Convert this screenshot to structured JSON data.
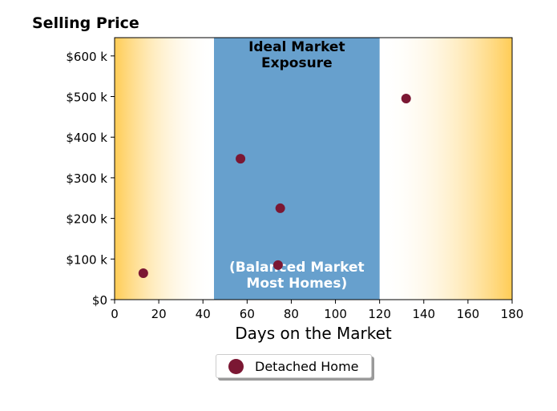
{
  "chart_data": {
    "type": "scatter",
    "title": "Selling Price",
    "xlabel": "Days on the Market",
    "ylabel": "",
    "xlim": [
      0,
      180
    ],
    "ylim": [
      0,
      645000
    ],
    "x_ticks": [
      0,
      20,
      40,
      60,
      80,
      100,
      120,
      140,
      160,
      180
    ],
    "x_tick_labels": [
      "0",
      "20",
      "40",
      "60",
      "80",
      "100",
      "120",
      "140",
      "160",
      "180"
    ],
    "y_ticks": [
      0,
      100000,
      200000,
      300000,
      400000,
      500000,
      600000
    ],
    "y_tick_labels": [
      "$0",
      "$100 k",
      "$200 k",
      "$300 k",
      "$400 k",
      "$500 k",
      "$600 k"
    ],
    "grid": false,
    "legend_position": "bottom-center-outside",
    "series": [
      {
        "name": "Detached Home",
        "color": "#7b1733",
        "points": [
          {
            "x": 13,
            "y": 65000
          },
          {
            "x": 57,
            "y": 347000
          },
          {
            "x": 75,
            "y": 225000
          },
          {
            "x": 74,
            "y": 85000
          },
          {
            "x": 132,
            "y": 495000
          }
        ]
      }
    ],
    "bands": [
      {
        "x_from": 45,
        "x_to": 120,
        "color": "#67a0cd",
        "label_top": "Ideal Market\nExposure",
        "label_bottom": "(Balanced Market\nMost Homes)"
      }
    ],
    "edge_gradient_color": "#ffcc55"
  }
}
